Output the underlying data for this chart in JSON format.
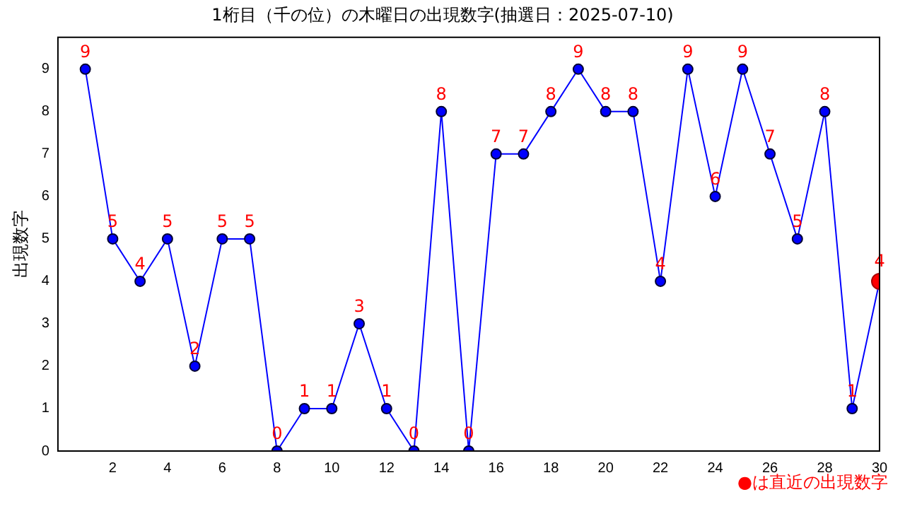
{
  "chart_data": {
    "type": "line",
    "title": "1桁目（千の位）の木曜日の出現数字(抽選日：2025-07-10)",
    "ylabel": "出現数字",
    "x": [
      1,
      2,
      3,
      4,
      5,
      6,
      7,
      8,
      9,
      10,
      11,
      12,
      13,
      14,
      15,
      16,
      17,
      18,
      19,
      20,
      21,
      22,
      23,
      24,
      25,
      26,
      27,
      28,
      29,
      30
    ],
    "series": [
      {
        "color": "#0000ff",
        "marker": "circle",
        "values": [
          9,
          5,
          4,
          5,
          2,
          5,
          5,
          0,
          1,
          1,
          3,
          1,
          0,
          8,
          0,
          7,
          7,
          8,
          9,
          8,
          8,
          4,
          9,
          6,
          9,
          7,
          5,
          8,
          1,
          4
        ],
        "value_labels": [
          "9",
          "5",
          "4",
          "5",
          "2",
          "5",
          "5",
          "0",
          "1",
          "1",
          "3",
          "1",
          "0",
          "8",
          "0",
          "7",
          "7",
          "8",
          "9",
          "8",
          "8",
          "4",
          "9",
          "6",
          "9",
          "7",
          "5",
          "8",
          "1",
          null
        ]
      },
      {
        "type": "scatter",
        "color": "#ff0000",
        "marker": "circle",
        "x": [
          30
        ],
        "values": [
          4
        ],
        "value_labels": [
          "4"
        ]
      }
    ],
    "xlim": [
      0,
      30
    ],
    "xticks": [
      2,
      4,
      6,
      8,
      10,
      12,
      14,
      16,
      18,
      20,
      22,
      24,
      26,
      28,
      30
    ],
    "ylim": [
      0,
      9.75
    ],
    "yticks": [
      0,
      1,
      2,
      3,
      4,
      5,
      6,
      7,
      8,
      9
    ],
    "grid": false,
    "legend": false,
    "annotations": [
      "●は直近の出現数字"
    ]
  }
}
